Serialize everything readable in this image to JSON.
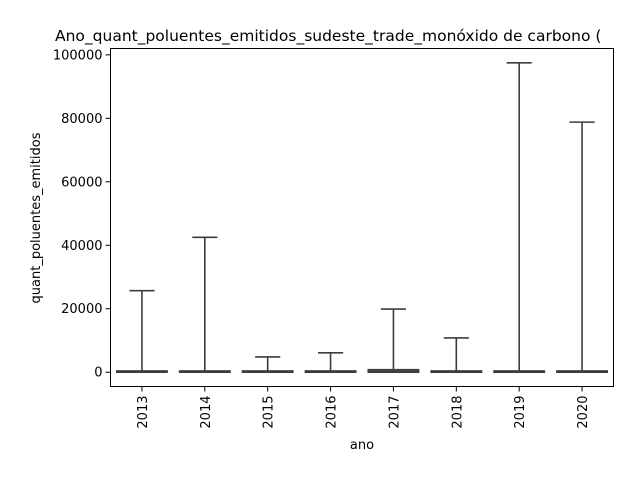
{
  "chart_data": {
    "type": "box",
    "title": "Ano_quant_poluentes_emitidos_sudeste_trade_monóxido de carbono (",
    "xlabel": "ano",
    "ylabel": "quant_poluentes_emitidos",
    "ylim": [
      -4500,
      102000
    ],
    "yticks": [
      0,
      20000,
      40000,
      60000,
      80000,
      100000
    ],
    "ytick_labels": [
      "0",
      "20000",
      "40000",
      "60000",
      "80000",
      "100000"
    ],
    "grid": false,
    "series_color": "#3d3d3d",
    "boxes": [
      {
        "label": "2013",
        "whisker_low": 0,
        "q1": 0,
        "median": 100,
        "q3": 400,
        "whisker_high": 25700
      },
      {
        "label": "2014",
        "whisker_low": 0,
        "q1": 0,
        "median": 100,
        "q3": 400,
        "whisker_high": 42500
      },
      {
        "label": "2015",
        "whisker_low": 0,
        "q1": 0,
        "median": 100,
        "q3": 400,
        "whisker_high": 4800
      },
      {
        "label": "2016",
        "whisker_low": 0,
        "q1": 0,
        "median": 100,
        "q3": 400,
        "whisker_high": 6100
      },
      {
        "label": "2017",
        "whisker_low": 0,
        "q1": 0,
        "median": 200,
        "q3": 800,
        "whisker_high": 19900
      },
      {
        "label": "2018",
        "whisker_low": 0,
        "q1": 0,
        "median": 100,
        "q3": 400,
        "whisker_high": 10800
      },
      {
        "label": "2019",
        "whisker_low": 0,
        "q1": 0,
        "median": 100,
        "q3": 400,
        "whisker_high": 97500
      },
      {
        "label": "2020",
        "whisker_low": 0,
        "q1": 0,
        "median": 100,
        "q3": 400,
        "whisker_high": 78800
      }
    ]
  }
}
